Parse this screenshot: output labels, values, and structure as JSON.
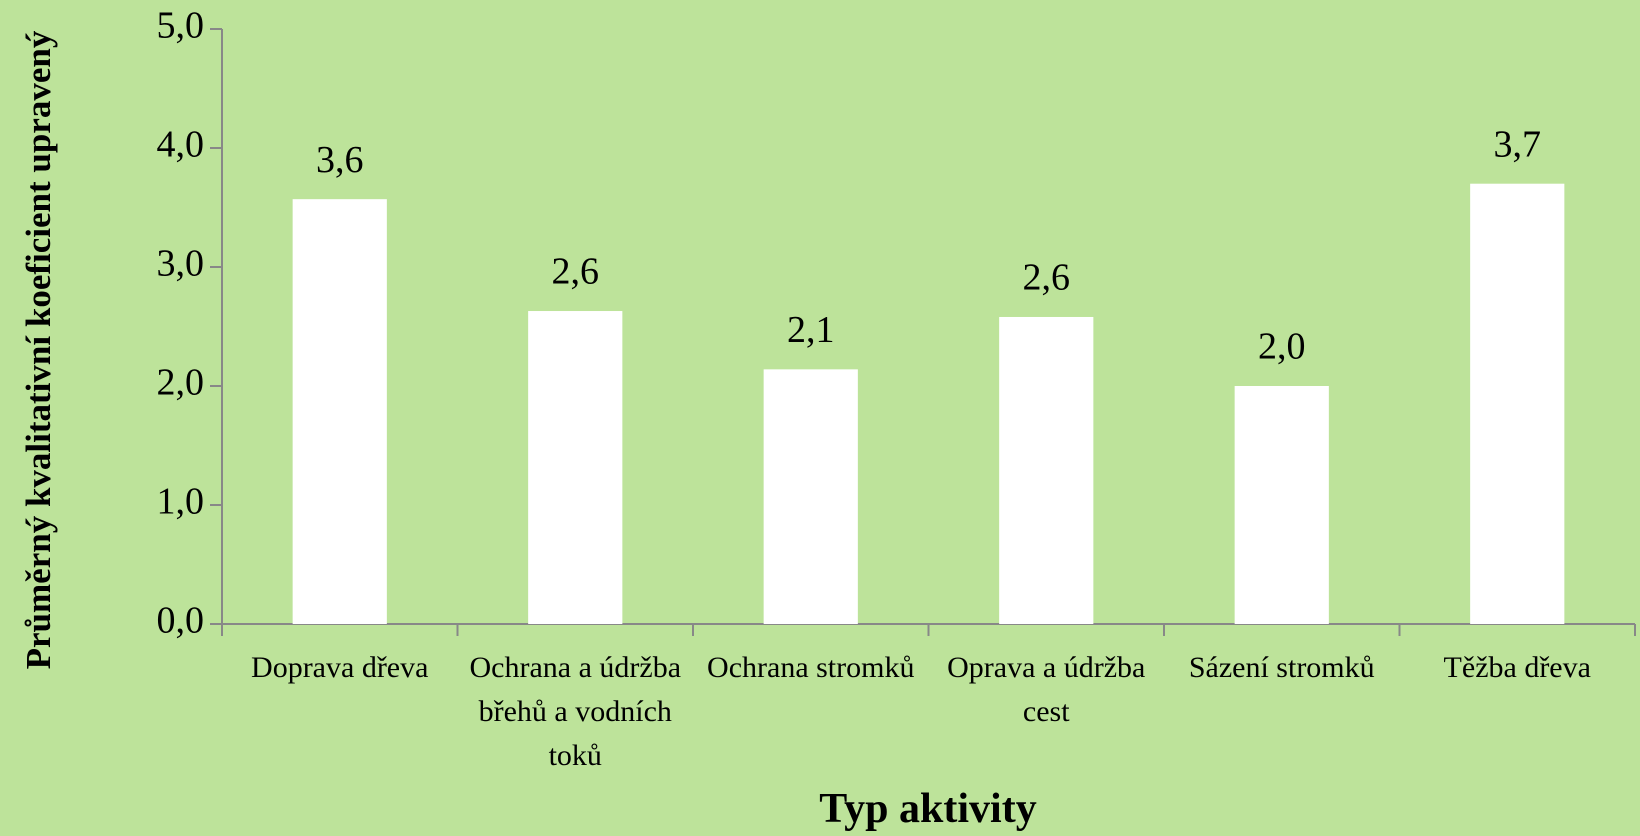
{
  "chart_data": {
    "type": "bar",
    "x_label": "Typ aktivity",
    "y_label": "Průměrný kvalitativní koeficient upravený",
    "categories": [
      "Doprava dřeva",
      "Ochrana a údržba břehů a vodních toků",
      "Ochrana stromků",
      "Oprava a údržba cest",
      "Sázení stromků",
      "Těžba dřeva"
    ],
    "values": [
      3.57,
      2.63,
      2.14,
      2.58,
      2.0,
      3.7
    ],
    "value_labels": [
      "3,6",
      "2,6",
      "2,1",
      "2,6",
      "2,0",
      "3,7"
    ],
    "color": "#ffffff",
    "background": "#bde39a",
    "ylim": [
      0,
      5
    ],
    "yticks": [
      {
        "value": 0,
        "label": "0,0"
      },
      {
        "value": 1,
        "label": "1,0"
      },
      {
        "value": 2,
        "label": "2,0"
      },
      {
        "value": 3,
        "label": "3,0"
      },
      {
        "value": 4,
        "label": "4,0"
      },
      {
        "value": 5,
        "label": "5,0"
      }
    ],
    "grid": false
  }
}
